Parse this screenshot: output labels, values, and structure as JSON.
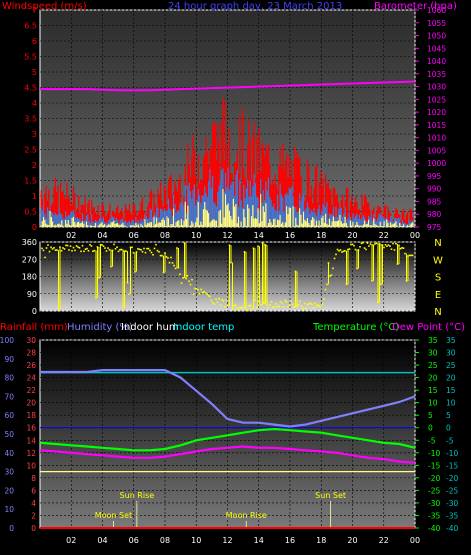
{
  "chart_data": [
    {
      "type": "line",
      "title": "24 hour graph day, 23 March 2013",
      "left_label": "Windspeed (m/s)",
      "right_label": "Barometer (hpa)",
      "ylim_left": [
        0,
        7
      ],
      "ylim_right": [
        975,
        1060
      ],
      "left_ticks": [
        "7",
        "6.5",
        "6",
        "5.5",
        "5",
        "4.5",
        "4",
        "3.5",
        "3",
        "2.5",
        "2",
        "1.5",
        "1",
        "0.5",
        "0"
      ],
      "right_ticks": [
        "1060",
        "1055",
        "1050",
        "1045",
        "1040",
        "1035",
        "1030",
        "1025",
        "1020",
        "1015",
        "1010",
        "1005",
        "1000",
        "995",
        "990",
        "985",
        "980",
        "975"
      ],
      "x_ticks": [
        "02",
        "04",
        "06",
        "08",
        "10",
        "12",
        "14",
        "16",
        "18",
        "20",
        "22",
        "00"
      ],
      "x_hours": [
        2,
        4,
        6,
        8,
        10,
        12,
        14,
        16,
        18,
        20,
        22,
        24
      ],
      "hours": [
        0,
        1,
        2,
        3,
        4,
        5,
        6,
        7,
        8,
        9,
        10,
        11,
        12,
        13,
        14,
        15,
        16,
        17,
        18,
        19,
        20,
        21,
        22,
        23,
        24
      ],
      "barometer": [
        1029,
        1029,
        1029,
        1029,
        1028.8,
        1028.6,
        1028.5,
        1028.6,
        1028.8,
        1029,
        1029.2,
        1029.4,
        1029.6,
        1029.8,
        1030,
        1030.2,
        1030.4,
        1030.6,
        1030.8,
        1031,
        1031.2,
        1031.4,
        1031.6,
        1031.8,
        1032
      ],
      "gust_max": [
        1.8,
        1.6,
        1.4,
        1.0,
        0.9,
        0.7,
        0.8,
        1.2,
        1.6,
        2.2,
        3.3,
        3.9,
        4.4,
        3.8,
        3.3,
        3.0,
        2.7,
        2.4,
        1.9,
        1.5,
        1.2,
        1.0,
        0.8,
        0.6,
        0.6
      ],
      "avg_speed": [
        0.6,
        0.5,
        0.4,
        0.3,
        0.3,
        0.2,
        0.2,
        0.4,
        0.6,
        0.8,
        1.2,
        1.4,
        1.5,
        1.3,
        1.2,
        1.0,
        0.9,
        0.8,
        0.6,
        0.5,
        0.4,
        0.3,
        0.3,
        0.2,
        0.2
      ],
      "series_colors": {
        "gust": "#ff0000",
        "speed": "#3a7bd5",
        "wind_fill": "#ffff80",
        "barometer": "#ff00ff"
      }
    },
    {
      "type": "scatter",
      "ylabels_left": [
        "360",
        "270",
        "180",
        "90",
        "0"
      ],
      "ylabels_right": [
        "N",
        "W",
        "S",
        "E",
        "N"
      ],
      "ylim": [
        0,
        360
      ],
      "hours": [
        0,
        1,
        2,
        3,
        4,
        5,
        6,
        7,
        8,
        9,
        10,
        11,
        12,
        13,
        14,
        15,
        16,
        17,
        18,
        19,
        20,
        21,
        22,
        23,
        24
      ],
      "direction": [
        330,
        320,
        325,
        330,
        330,
        330,
        320,
        310,
        300,
        200,
        120,
        60,
        30,
        20,
        25,
        30,
        40,
        30,
        20,
        300,
        330,
        340,
        340,
        330,
        270
      ],
      "color": "#ffff00"
    },
    {
      "type": "line",
      "labels": {
        "rainfall": "Rainfall (mm)",
        "humidity": "Humidity (%)",
        "indoor_hum": "Indoor hum",
        "indoor_temp": "Indoor temp",
        "temperature": "Temperature (°C)",
        "dew_point": "Dew Point (°C)"
      },
      "ylim_humidity": [
        0,
        100
      ],
      "ylim_rain": [
        0,
        30
      ],
      "ylim_temp": [
        -40,
        35
      ],
      "humidity_ticks": [
        "100",
        "90",
        "80",
        "70",
        "60",
        "50",
        "40",
        "30",
        "20",
        "10",
        "0"
      ],
      "rain_ticks": [
        "30",
        "28",
        "26",
        "24",
        "22",
        "20",
        "18",
        "16",
        "14",
        "12",
        "10",
        "8",
        "6",
        "4",
        "2",
        "0"
      ],
      "temp_ticks": [
        "35",
        "30",
        "25",
        "20",
        "15",
        "10",
        "5",
        "0",
        "-5",
        "-10",
        "-15",
        "-20",
        "-25",
        "-30",
        "-35",
        "-40"
      ],
      "hours": [
        0,
        1,
        2,
        3,
        4,
        5,
        6,
        7,
        8,
        9,
        10,
        11,
        12,
        13,
        14,
        15,
        16,
        17,
        18,
        19,
        20,
        21,
        22,
        23,
        24
      ],
      "humidity": [
        83,
        83,
        83,
        83,
        84,
        84,
        84,
        84,
        84,
        80,
        73,
        66,
        58,
        56,
        56,
        55,
        54,
        55,
        57,
        59,
        61,
        63,
        65,
        67,
        70
      ],
      "indoor_temp": [
        22,
        22,
        22,
        22,
        22,
        22,
        22,
        22,
        22,
        22,
        22,
        22,
        22,
        22,
        22,
        22,
        22,
        22,
        22,
        22,
        22,
        22,
        22,
        22,
        22
      ],
      "temperature": [
        -6,
        -6.5,
        -7,
        -7.5,
        -8,
        -8.5,
        -9,
        -9,
        -8.5,
        -7,
        -5,
        -4,
        -3,
        -2,
        -1,
        -0.5,
        -1,
        -1.5,
        -2,
        -3,
        -4,
        -5,
        -6,
        -6.5,
        -8
      ],
      "dew_point": [
        -9,
        -9.5,
        -10,
        -10.5,
        -11,
        -11.5,
        -12,
        -12,
        -11.5,
        -10.5,
        -9.5,
        -8.5,
        -8,
        -7.5,
        -8,
        -8,
        -8.5,
        -9,
        -9.5,
        -10,
        -11,
        -12,
        -12.5,
        -13.5,
        -14
      ],
      "indoor_hum": [
        30,
        30,
        30,
        30,
        30,
        30,
        30,
        30,
        30,
        30,
        30,
        30,
        30,
        30,
        30,
        30,
        30,
        30,
        30,
        30,
        30,
        30,
        30,
        30,
        30
      ],
      "rainfall": [
        0,
        0,
        0,
        0,
        0,
        0,
        0,
        0,
        0,
        0,
        0,
        0,
        0,
        0,
        0,
        0,
        0,
        0,
        0,
        0,
        0,
        0,
        0,
        0,
        0
      ],
      "events": [
        {
          "label": "Moon Set",
          "hour": 4.7,
          "row": "lower"
        },
        {
          "label": "Sun Rise",
          "hour": 6.2,
          "row": "upper"
        },
        {
          "label": "Moon Rise",
          "hour": 13.2,
          "row": "lower"
        },
        {
          "label": "Sun Set",
          "hour": 18.6,
          "row": "upper"
        }
      ],
      "series_colors": {
        "humidity": "#8080ff",
        "indoor_temp": "#00c0c0",
        "temperature": "#00ff00",
        "dew_point": "#ff00ff",
        "indoor_hum": "#ffff80",
        "rainfall": "#ff0000"
      },
      "label_colors": {
        "rainfall": "#ff0000",
        "humidity": "#8080ff",
        "indoor_hum": "#ffffff",
        "indoor_temp": "#00ffff",
        "temperature": "#00ff00",
        "dew_point": "#ff00ff"
      }
    }
  ]
}
